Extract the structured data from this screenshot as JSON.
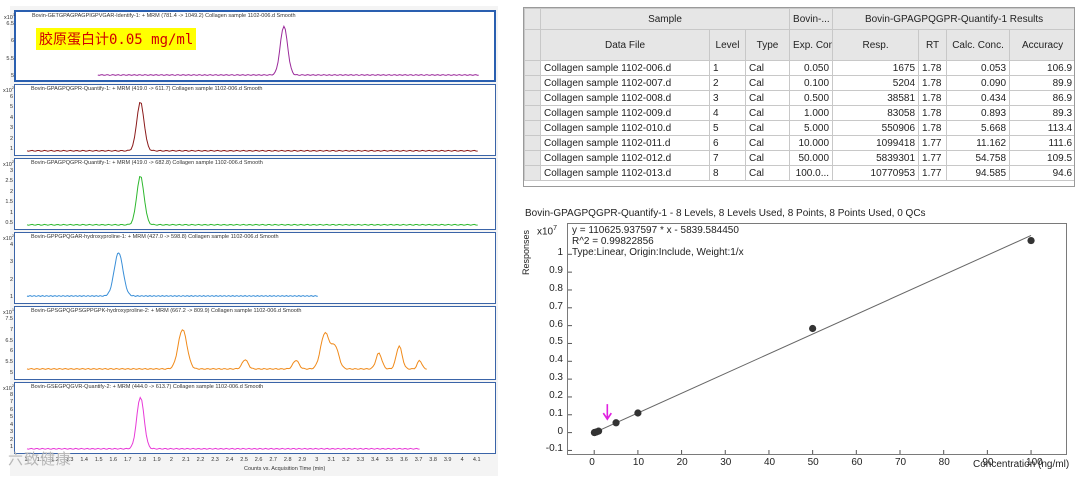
{
  "chromatograms": [
    {
      "title": "Bovin-GETGPAGPAGPIGPVGAR-Identify-1: + MRM (781.4 -> 1049.2) Collagen sample 1102-006.d  Smooth",
      "exponent": "1",
      "color": "#9b2a9b",
      "yticks": [
        "6.5",
        "6",
        "5.5",
        "5"
      ],
      "annotation": "胶原蛋白计0.05 mg/ml"
    },
    {
      "title": "Bovin-GPAGPQGPR-Quantify-1: + MRM (419.0 -> 611.7) Collagen sample 1102-006.d  Smooth",
      "exponent": "2",
      "color": "#8b1a1a",
      "yticks": [
        "6",
        "5",
        "4",
        "3",
        "2",
        "1"
      ]
    },
    {
      "title": "Bovin-GPAGPQGPR-Quantify-1: + MRM (419.0 -> 682.8) Collagen sample 1102-006.d  Smooth",
      "exponent": "2",
      "color": "#2eb82e",
      "yticks": [
        "3",
        "2.5",
        "2",
        "1.5",
        "1",
        "0.5"
      ]
    },
    {
      "title": "Bovin-GPPGPQGAR-hydroxyproline-1: + MRM (427.0 -> 598.8) Collagen sample 1102-006.d  Smooth",
      "exponent": "2",
      "color": "#3a8fd8",
      "yticks": [
        "4",
        "3",
        "2",
        "1"
      ]
    },
    {
      "title": "Bovin-GPSGPQGPSGPPGPK-hydroxyproline-2: + MRM (667.2 -> 809.9) Collagen sample 1102-006.d  Smooth",
      "exponent": "1",
      "color": "#f08a1a",
      "yticks": [
        "7.5",
        "7",
        "6.5",
        "6",
        "5.5",
        "5"
      ]
    },
    {
      "title": "Bovin-GSEGPQGVR-Quantify-2: + MRM (444.0 -> 613.7) Collagen sample 1102-006.d  Smooth",
      "exponent": "2",
      "color": "#e83ad8",
      "yticks": [
        "8",
        "7",
        "6",
        "5",
        "4",
        "3",
        "2",
        "1"
      ]
    }
  ],
  "x_axis": {
    "ticks": [
      "1",
      "1.1",
      "1.2",
      "1.3",
      "1.4",
      "1.5",
      "1.6",
      "1.7",
      "1.8",
      "1.9",
      "2",
      "2.1",
      "2.2",
      "2.3",
      "2.4",
      "2.5",
      "2.6",
      "2.7",
      "2.8",
      "2.9",
      "3",
      "3.1",
      "3.2",
      "3.3",
      "3.4",
      "3.5",
      "3.6",
      "3.7",
      "3.8",
      "3.9",
      "4",
      "4.1"
    ],
    "title": "Counts vs. Acquisition Time (min)"
  },
  "watermark": "六致健康",
  "results_table": {
    "group_headers": [
      "Sample",
      "Bovin-...",
      "Bovin-GPAGPQGPR-Quantify-1 Results"
    ],
    "columns": [
      "Data File",
      "Level",
      "Type",
      "Exp. Conc.",
      "Resp.",
      "RT",
      "Calc. Conc.",
      "Accuracy"
    ],
    "rows": [
      [
        "Collagen sample 1102-006.d",
        "1",
        "Cal",
        "0.050",
        "1675",
        "1.78",
        "0.053",
        "106.9"
      ],
      [
        "Collagen sample 1102-007.d",
        "2",
        "Cal",
        "0.100",
        "5204",
        "1.78",
        "0.090",
        "89.9"
      ],
      [
        "Collagen sample 1102-008.d",
        "3",
        "Cal",
        "0.500",
        "38581",
        "1.78",
        "0.434",
        "86.9"
      ],
      [
        "Collagen sample 1102-009.d",
        "4",
        "Cal",
        "1.000",
        "83058",
        "1.78",
        "0.893",
        "89.3"
      ],
      [
        "Collagen sample 1102-010.d",
        "5",
        "Cal",
        "5.000",
        "550906",
        "1.78",
        "5.668",
        "113.4"
      ],
      [
        "Collagen sample 1102-011.d",
        "6",
        "Cal",
        "10.000",
        "1099418",
        "1.77",
        "11.162",
        "111.6"
      ],
      [
        "Collagen sample 1102-012.d",
        "7",
        "Cal",
        "50.000",
        "5839301",
        "1.77",
        "54.758",
        "109.5"
      ],
      [
        "Collagen sample 1102-013.d",
        "8",
        "Cal",
        "100.0...",
        "10770953",
        "1.77",
        "94.585",
        "94.6"
      ]
    ]
  },
  "calibration": {
    "title": "Bovin-GPAGPQGPR-Quantify-1 - 8 Levels, 8 Levels Used, 8 Points, 8 Points Used, 0 QCs",
    "equation": "y = 110625.937597 * x  - 5839.584450",
    "r2": "R^2 = 0.99822856",
    "fit_type": "Type:Linear, Origin:Include, Weight:1/x",
    "ylabel": "Responses",
    "y_exponent": "x10",
    "y_exponent_power": "7",
    "xlabel": "Concentration (ng/ml)",
    "arrow_color": "#e020e0"
  },
  "chart_data": {
    "type": "scatter",
    "title": "Bovin-GPAGPQGPR-Quantify-1 - 8 Levels, 8 Levels Used, 8 Points, 8 Points Used, 0 QCs",
    "xlabel": "Concentration (ng/ml)",
    "ylabel": "Responses",
    "x": [
      0.05,
      0.1,
      0.5,
      1,
      5,
      10,
      50,
      100
    ],
    "y": [
      1675,
      5204,
      38581,
      83058,
      550906,
      1099418,
      5839301,
      10770953
    ],
    "xlim": [
      -6,
      108
    ],
    "ylim": [
      -1200000,
      11700000
    ],
    "xticks": [
      0,
      10,
      20,
      30,
      40,
      50,
      60,
      70,
      80,
      90,
      100
    ],
    "yticks": [
      "-0.1",
      "0",
      "0.1",
      "0.2",
      "0.3",
      "0.4",
      "0.5",
      "0.6",
      "0.7",
      "0.8",
      "0.9",
      "1"
    ],
    "fit": {
      "slope": 110625.937597,
      "intercept": -5839.58445
    },
    "grid": false
  }
}
